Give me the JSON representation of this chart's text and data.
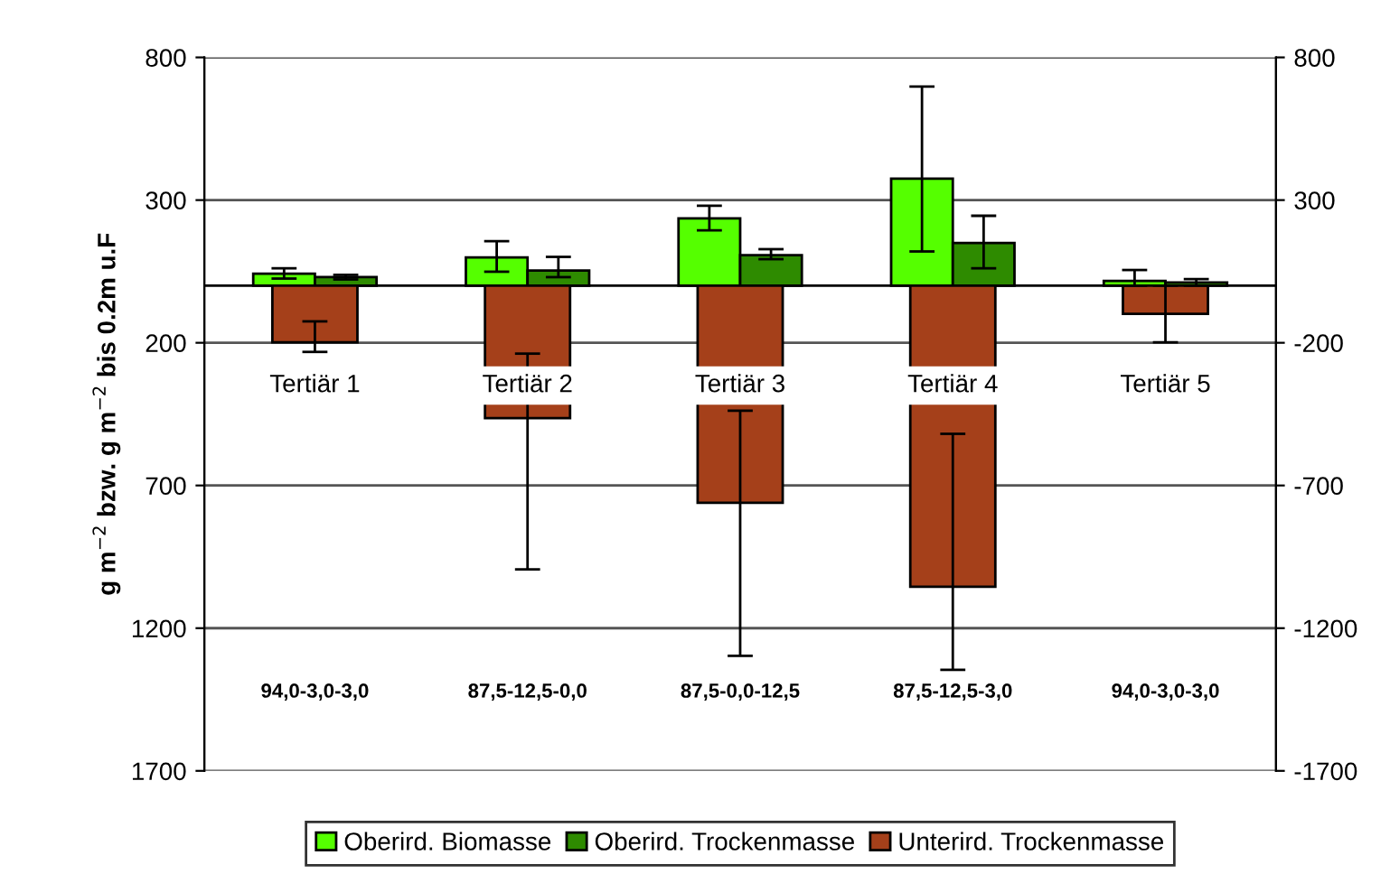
{
  "chart_data": {
    "type": "bar",
    "categories": [
      "Tertiär 1",
      "Tertiär 2",
      "Tertiär 3",
      "Tertiär 4",
      "Tertiär 5"
    ],
    "ylabel": "g m$^{−2}$ bzw. g m$^{−2}$ bis 0.2m u.F",
    "series": [
      {
        "name": "Oberird. Biomasse",
        "color": "#55ff00",
        "values": [
          42,
          99,
          236,
          375,
          17
        ],
        "errors": [
          [
            25,
            61
          ],
          [
            49,
            156
          ],
          [
            194,
            280
          ],
          [
            120,
            698
          ],
          [
            0,
            55
          ]
        ]
      },
      {
        "name": "Oberird. Trockenmasse",
        "color": "#2e8b00",
        "values": [
          30,
          53,
          107,
          150,
          11
        ],
        "errors": [
          [
            22,
            38
          ],
          [
            30,
            101
          ],
          [
            93,
            128
          ],
          [
            61,
            245
          ],
          [
            0,
            23
          ]
        ]
      },
      {
        "name": "Unterird. Trockenmasse",
        "color": "#a5401a",
        "values": [
          -198,
          -464,
          -761,
          -1055,
          -99
        ],
        "errors": [
          [
            -232,
            -125
          ],
          [
            -994,
            -238
          ],
          [
            -1297,
            -438
          ],
          [
            -1346,
            -519
          ],
          [
            -198,
            0
          ]
        ]
      }
    ],
    "ylim": [
      -1700,
      800
    ],
    "yticks": [
      {
        "value": 800,
        "label": "800"
      },
      {
        "value": 300,
        "label": "300"
      },
      {
        "value": -200,
        "label": "200"
      },
      {
        "value": -700,
        "label": "700"
      },
      {
        "value": -1200,
        "label": "1200"
      },
      {
        "value": -1700,
        "label": "1700"
      }
    ],
    "y2lim": [
      -1700,
      800
    ],
    "y2ticks": [
      800,
      300,
      -200,
      -700,
      -1200,
      -1700
    ],
    "annotations": [
      "94,0-3,0-3,0",
      "87,5-12,5-0,0",
      "87,5-0,0-12,5",
      "87,5-12,5-3,0",
      "94,0-3,0-3,0"
    ],
    "grid": "y",
    "legend": "bottom"
  }
}
